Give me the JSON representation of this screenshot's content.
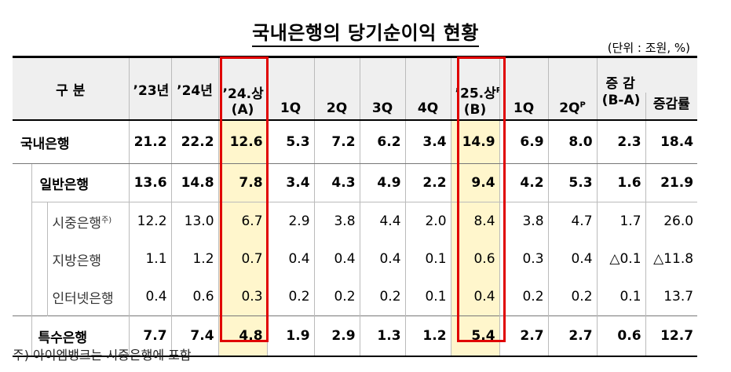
{
  "title": "국내은행의 당기순이익 현황",
  "unit": "(단위 : 조원, %)",
  "header": {
    "category": "구 분",
    "y23": "’23년",
    "y24": "’24년",
    "h24_line1": "’24.상",
    "h24_line2": "(A)",
    "h25_line1": "’25.상",
    "h25_sup": "P",
    "h25_line2": "(B)",
    "change_line1": "증 감",
    "change_line2": "(B-A)",
    "change_rate": "증감률",
    "q24": [
      "1Q",
      "2Q",
      "3Q",
      "4Q"
    ],
    "q25": [
      "1Q",
      "2Q"
    ],
    "q25_2_sup": "P"
  },
  "rows": [
    {
      "name": "국내은행",
      "values": [
        "21.2",
        "22.2",
        "12.6",
        "5.3",
        "7.2",
        "6.2",
        "3.4",
        "14.9",
        "6.9",
        "8.0",
        "2.3",
        "18.4"
      ]
    },
    {
      "name": "일반은행",
      "values": [
        "13.6",
        "14.8",
        "7.8",
        "3.4",
        "4.3",
        "4.9",
        "2.2",
        "9.4",
        "4.2",
        "5.3",
        "1.6",
        "21.9"
      ]
    },
    {
      "name": "시중은행",
      "note": "주)",
      "values": [
        "12.2",
        "13.0",
        "6.7",
        "2.9",
        "3.8",
        "4.4",
        "2.0",
        "8.4",
        "3.8",
        "4.7",
        "1.7",
        "26.0"
      ]
    },
    {
      "name": "지방은행",
      "values": [
        "1.1",
        "1.2",
        "0.7",
        "0.4",
        "0.4",
        "0.4",
        "0.1",
        "0.6",
        "0.3",
        "0.4",
        "△0.1",
        "△11.8"
      ]
    },
    {
      "name": "인터넷은행",
      "values": [
        "0.4",
        "0.6",
        "0.3",
        "0.2",
        "0.2",
        "0.2",
        "0.1",
        "0.4",
        "0.2",
        "0.2",
        "0.1",
        "13.7"
      ]
    },
    {
      "name": "특수은행",
      "values": [
        "7.7",
        "7.4",
        "4.8",
        "1.9",
        "2.9",
        "1.3",
        "1.2",
        "5.4",
        "2.7",
        "2.7",
        "0.6",
        "12.7"
      ]
    }
  ],
  "colors": {
    "highlight_box": "#e00000",
    "highlight_fill": "#fff6cc",
    "header_bg": "#efefef"
  },
  "footnote": "주) 아이엠뱅크는 시중은행에 포함"
}
